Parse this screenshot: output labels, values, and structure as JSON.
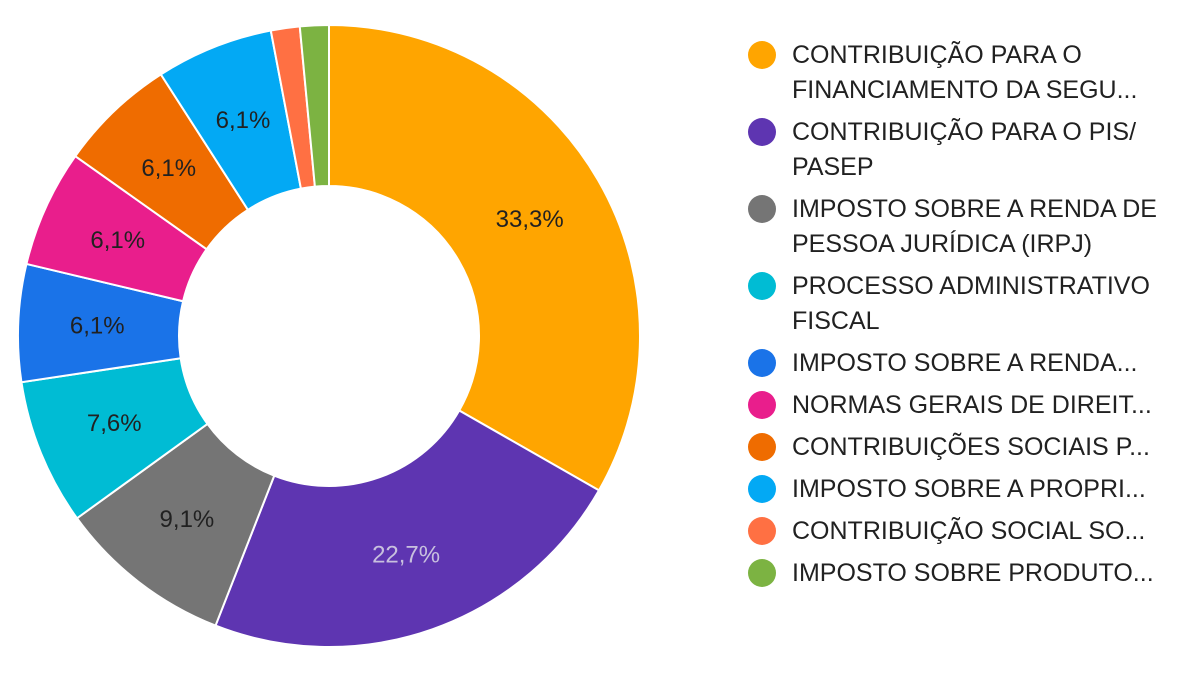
{
  "chart_data": {
    "type": "pie",
    "donut": true,
    "legend_position": "right",
    "slices": [
      {
        "label": "CONTRIBUIÇÃO PARA O FINANCIAMENTO DA SEGU...",
        "value": 33.3,
        "value_label": "33,3%",
        "color": "#FFA500",
        "label_color": "#212121"
      },
      {
        "label": "CONTRIBUIÇÃO PARA O PIS/ PASEP",
        "value": 22.7,
        "value_label": "22,7%",
        "color": "#5E35B1",
        "label_color": "#C8C0DE"
      },
      {
        "label": "IMPOSTO SOBRE A RENDA DE PESSOA JURÍDICA (IRPJ)",
        "value": 9.1,
        "value_label": "9,1%",
        "color": "#757575",
        "label_color": "#212121"
      },
      {
        "label": "PROCESSO ADMINISTRATIVO FISCAL",
        "value": 7.6,
        "value_label": "7,6%",
        "color": "#00BCD4",
        "label_color": "#212121"
      },
      {
        "label": "IMPOSTO SOBRE A RENDA...",
        "value": 6.1,
        "value_label": "6,1%",
        "color": "#1A73E8",
        "label_color": "#212121"
      },
      {
        "label": "NORMAS GERAIS DE DIREIT...",
        "value": 6.1,
        "value_label": "6,1%",
        "color": "#E91E8C",
        "label_color": "#212121"
      },
      {
        "label": "CONTRIBUIÇÕES SOCIAIS P...",
        "value": 6.1,
        "value_label": "6,1%",
        "color": "#EF6C00",
        "label_color": "#212121"
      },
      {
        "label": "IMPOSTO SOBRE A PROPRI...",
        "value": 6.1,
        "value_label": "6,1%",
        "color": "#03A9F4",
        "label_color": "#212121"
      },
      {
        "label": "CONTRIBUIÇÃO SOCIAL SO...",
        "value": 1.5,
        "value_label": "",
        "color": "#FF7043",
        "label_color": "#212121"
      },
      {
        "label": "IMPOSTO SOBRE PRODUTO...",
        "value": 1.5,
        "value_label": "",
        "color": "#7CB342",
        "label_color": "#212121"
      }
    ]
  }
}
